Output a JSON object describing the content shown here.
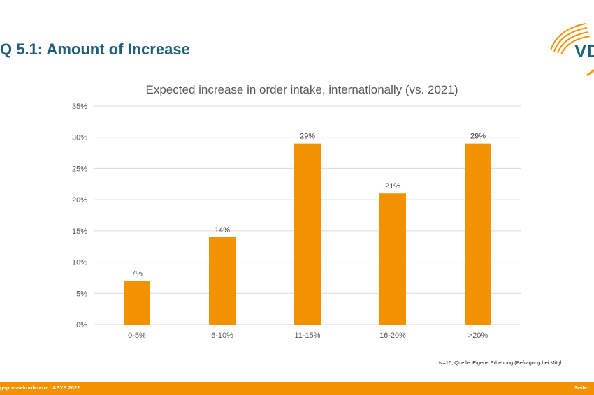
{
  "slide": {
    "title": "Q 5.1: Amount of Increase",
    "logo_text": "VD",
    "footnote": "N=16, Quelle: Eigene Erhebung (Befragung bei Mitgl",
    "footer_left": "gspressekonferenz LASYS 2022",
    "footer_right": "Seite"
  },
  "colors": {
    "accent": "#f39200",
    "title": "#1f5f7a",
    "gridline": "#d9d9d9"
  },
  "chart_data": {
    "type": "bar",
    "title": "Expected increase in order intake, internationally (vs. 2021)",
    "xlabel": "",
    "ylabel": "",
    "categories": [
      "0-5%",
      "6-10%",
      "11-15%",
      "16-20%",
      ">20%"
    ],
    "values": [
      7,
      14,
      29,
      21,
      29
    ],
    "data_labels": [
      "7%",
      "14%",
      "29%",
      "21%",
      "29%"
    ],
    "ylim": [
      0,
      35
    ],
    "yticks": [
      0,
      5,
      10,
      15,
      20,
      25,
      30,
      35
    ],
    "ytick_labels": [
      "0%",
      "5%",
      "10%",
      "15%",
      "20%",
      "25%",
      "30%",
      "35%"
    ],
    "grid": true,
    "legend": "none"
  }
}
